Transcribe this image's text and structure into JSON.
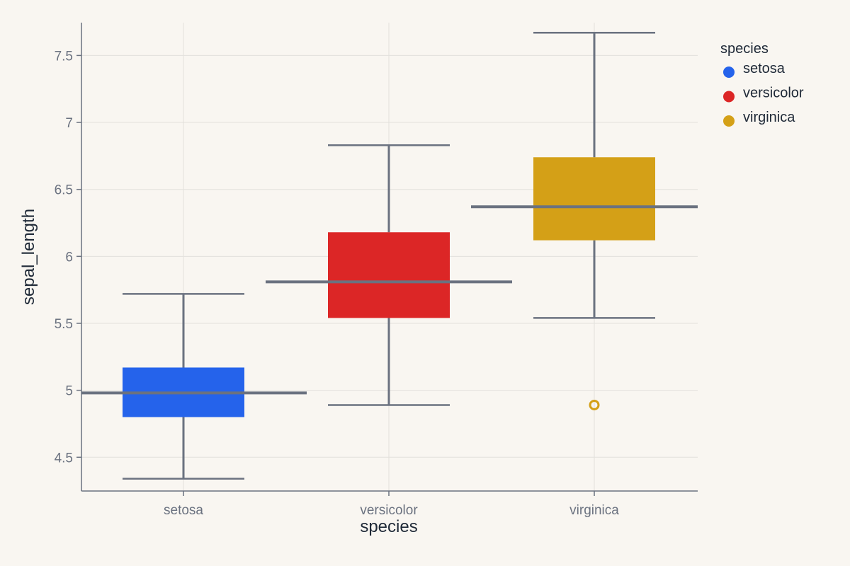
{
  "chart_data": {
    "type": "box",
    "xlabel": "species",
    "ylabel": "sepal_length",
    "ylim": [
      4.25,
      7.75
    ],
    "yticks": [
      {
        "value": 4.5,
        "label": "4.5"
      },
      {
        "value": 5,
        "label": "5"
      },
      {
        "value": 5.5,
        "label": "5.5"
      },
      {
        "value": 6,
        "label": "6"
      },
      {
        "value": 6.5,
        "label": "6.5"
      },
      {
        "value": 7,
        "label": "7"
      },
      {
        "value": 7.5,
        "label": "7.5"
      }
    ],
    "categories": [
      "setosa",
      "versicolor",
      "virginica"
    ],
    "grid": true,
    "legend": {
      "title": "species",
      "position": "top-right"
    },
    "series": [
      {
        "name": "setosa",
        "color": "#2563eb",
        "whisker_low": 4.34,
        "q1": 4.8,
        "median": 4.98,
        "q3": 5.17,
        "whisker_high": 5.72,
        "outliers": []
      },
      {
        "name": "versicolor",
        "color": "#dc2626",
        "whisker_low": 4.89,
        "q1": 5.54,
        "median": 5.81,
        "q3": 6.18,
        "whisker_high": 6.83,
        "outliers": []
      },
      {
        "name": "virginica",
        "color": "#d4a017",
        "whisker_low": 5.54,
        "q1": 6.12,
        "median": 6.37,
        "q3": 6.74,
        "whisker_high": 7.67,
        "outliers": [
          4.89
        ]
      }
    ]
  }
}
